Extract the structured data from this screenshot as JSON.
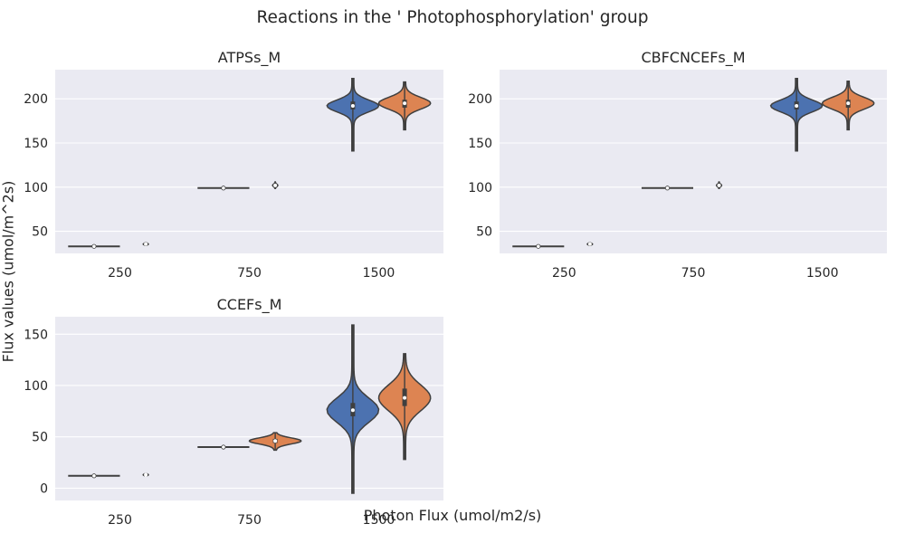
{
  "figure": {
    "suptitle": "Reactions in the ' Photophosphorylation' group",
    "xlabel": "Photon Flux (umol/m2/s)",
    "ylabel": "Flux values (umol/m^2s)"
  },
  "colors": {
    "background": "#eaeaf2",
    "grid": "#ffffff",
    "series_1": "#4c72b0",
    "series_2": "#dd8452",
    "edge": "#3f3f3f"
  },
  "chart_data": [
    {
      "type": "violin",
      "title": "ATPSs_M",
      "categories": [
        "250",
        "750",
        "1500"
      ],
      "ylim": [
        25,
        233
      ],
      "yticks": [
        50,
        100,
        150,
        200
      ],
      "grid": true,
      "series": [
        {
          "values": [
            {
              "median": 33,
              "q1": 33,
              "q3": 33,
              "min": 32.5,
              "max": 33.5
            },
            {
              "median": 99,
              "q1": 99,
              "q3": 99,
              "min": 98.5,
              "max": 99.5
            },
            {
              "median": 192,
              "q1": 188,
              "q3": 197,
              "min": 141,
              "max": 223
            }
          ]
        },
        {
          "values": [
            {
              "median": 35.5,
              "q1": 34.8,
              "q3": 36,
              "min": 34,
              "max": 37
            },
            {
              "median": 102,
              "q1": 101,
              "q3": 103,
              "min": 98.5,
              "max": 106
            },
            {
              "median": 195,
              "q1": 190,
              "q3": 199,
              "min": 165,
              "max": 219
            }
          ]
        }
      ]
    },
    {
      "type": "violin",
      "title": "CBFCNCEFs_M",
      "categories": [
        "250",
        "750",
        "1500"
      ],
      "ylim": [
        25,
        233
      ],
      "yticks": [
        50,
        100,
        150,
        200
      ],
      "grid": true,
      "series": [
        {
          "values": [
            {
              "median": 33,
              "q1": 33,
              "q3": 33,
              "min": 32.5,
              "max": 33.5
            },
            {
              "median": 99,
              "q1": 99,
              "q3": 99,
              "min": 98.5,
              "max": 99.5
            },
            {
              "median": 192,
              "q1": 188,
              "q3": 197,
              "min": 141,
              "max": 223
            }
          ]
        },
        {
          "values": [
            {
              "median": 35.5,
              "q1": 34.8,
              "q3": 36,
              "min": 34,
              "max": 37
            },
            {
              "median": 102,
              "q1": 101,
              "q3": 103,
              "min": 98.5,
              "max": 106
            },
            {
              "median": 195,
              "q1": 190,
              "q3": 199,
              "min": 165,
              "max": 220
            }
          ]
        }
      ]
    },
    {
      "type": "violin",
      "title": "CCEFs_M",
      "categories": [
        "250",
        "750",
        "1500"
      ],
      "ylim": [
        -12,
        167
      ],
      "yticks": [
        0,
        50,
        100,
        150
      ],
      "grid": true,
      "series": [
        {
          "values": [
            {
              "median": 12,
              "q1": 12,
              "q3": 12,
              "min": 11.5,
              "max": 12.5
            },
            {
              "median": 40,
              "q1": 40,
              "q3": 40,
              "min": 39.5,
              "max": 40.5
            },
            {
              "median": 76,
              "q1": 70,
              "q3": 83,
              "min": -5,
              "max": 159
            }
          ]
        },
        {
          "values": [
            {
              "median": 13,
              "q1": 12.5,
              "q3": 13.5,
              "min": 12,
              "max": 14
            },
            {
              "median": 46,
              "q1": 44,
              "q3": 48,
              "min": 37,
              "max": 54
            },
            {
              "median": 88,
              "q1": 80,
              "q3": 97,
              "min": 28,
              "max": 131
            }
          ]
        }
      ]
    }
  ]
}
